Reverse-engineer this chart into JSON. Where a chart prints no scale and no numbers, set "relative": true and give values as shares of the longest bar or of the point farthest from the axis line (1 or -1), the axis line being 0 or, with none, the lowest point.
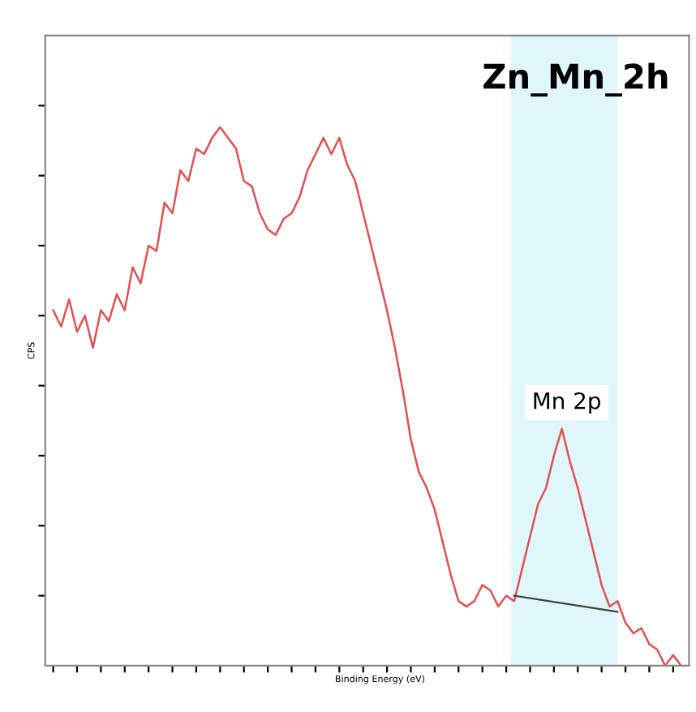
{
  "chart_data": {
    "type": "line",
    "title": "Zn_Mn_2h",
    "xlabel": "Binding Energy (eV)",
    "ylabel": "CPS",
    "relative": true,
    "tick_labels": false,
    "grid": false,
    "marker": "none",
    "line_style": "solid",
    "categories": [
      null,
      null,
      null,
      null,
      null,
      null,
      null,
      null,
      null,
      null,
      null,
      null,
      null,
      null,
      null,
      null,
      null,
      null,
      null,
      null,
      null,
      null,
      null,
      null,
      null,
      null,
      null,
      null,
      null,
      null,
      null,
      null,
      null,
      null,
      null,
      null,
      null,
      null,
      null,
      null,
      null,
      null,
      null,
      null,
      null,
      null,
      null,
      null,
      null,
      null,
      null,
      null,
      null,
      null,
      null,
      null,
      null,
      null,
      null,
      null,
      null,
      null,
      null,
      null,
      null,
      null,
      null,
      null,
      null,
      null,
      null,
      null,
      null,
      null,
      null,
      null,
      null,
      null,
      null,
      null
    ],
    "series": [
      {
        "color": "#e05050",
        "values": [
          0.66,
          0.63,
          0.68,
          0.62,
          0.65,
          0.59,
          0.66,
          0.64,
          0.69,
          0.66,
          0.74,
          0.71,
          0.78,
          0.77,
          0.86,
          0.84,
          0.92,
          0.9,
          0.96,
          0.95,
          0.98,
          1,
          0.98,
          0.96,
          0.9,
          0.89,
          0.84,
          0.81,
          0.8,
          0.83,
          0.84,
          0.87,
          0.92,
          0.95,
          0.98,
          0.95,
          0.98,
          0.93,
          0.9,
          0.84,
          0.78,
          0.72,
          0.66,
          0.59,
          0.51,
          0.42,
          0.36,
          0.33,
          0.29,
          0.23,
          0.17,
          0.12,
          0.11,
          0.12,
          0.15,
          0.14,
          0.11,
          0.13,
          0.12,
          0.18,
          0.24,
          0.3,
          0.33,
          0.39,
          0.44,
          0.38,
          0.33,
          0.27,
          0.21,
          0.15,
          0.11,
          0.12,
          0.08,
          0.06,
          0.07,
          0.04,
          0.03,
          0,
          0.02,
          0
        ]
      },
      {
        "type": "line",
        "color": "#404040",
        "values": [
          null,
          null,
          null,
          null,
          null,
          null,
          null,
          null,
          null,
          null,
          null,
          null,
          null,
          null,
          null,
          null,
          null,
          null,
          null,
          null,
          null,
          null,
          null,
          null,
          null,
          null,
          null,
          null,
          null,
          null,
          null,
          null,
          null,
          null,
          null,
          null,
          null,
          null,
          null,
          null,
          null,
          null,
          null,
          null,
          null,
          null,
          null,
          null,
          null,
          null,
          null,
          null,
          null,
          null,
          null,
          null,
          null,
          null,
          0.13,
          null,
          null,
          null,
          null,
          null,
          null,
          null,
          null,
          null,
          null,
          null,
          null,
          0.1,
          null,
          null,
          null,
          null,
          null,
          null,
          null,
          null
        ]
      }
    ],
    "annotations": [
      "Mn 2p"
    ]
  }
}
